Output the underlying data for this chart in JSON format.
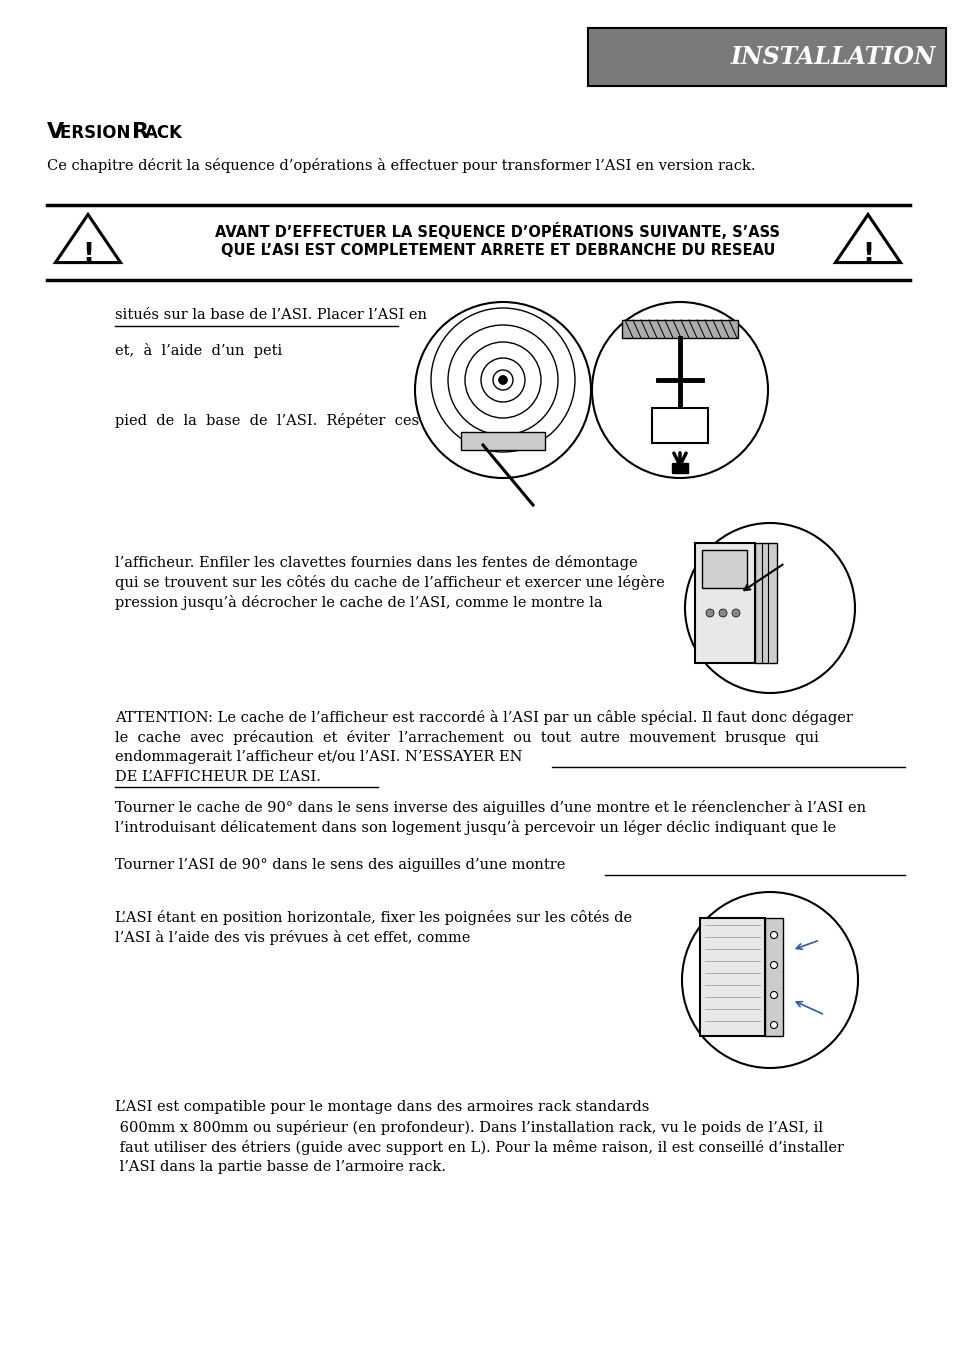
{
  "bg_color": "#ffffff",
  "header_bg": "#7a7a7a",
  "header_text": "INSTALLATION",
  "header_text_color": "#ffffff",
  "section_title_v": "V",
  "section_title_rest": "ERSION ",
  "section_title_r": "R",
  "section_title_ack": "ACK",
  "intro_text": "Ce chapitre décrit la séquence d’opérations à effectuer pour transformer l’ASI en version rack.",
  "warning_line1": "AVANT D’EFFECTUER LA SEQUENCE D’OPÉRATIONS SUIVANTE, S’ASS",
  "warning_line2": "QUE L’ASI EST COMPLETEMENT ARRETE ET DEBRANCHE DU RESEAU",
  "para1_line1": "situés sur la base de l’ASI. Placer l’ASI en",
  "para1_line2": "et,  à  l’aide  d’un  peti",
  "para1_line3": "pied  de  la  base  de  l’ASI.  Répéter  ces",
  "para2_line1": "l’afficheur. Enfiler les clavettes fournies dans les fentes de démontage",
  "para2_line2": "qui se trouvent sur les côtés du cache de l’afficheur et exercer une légère",
  "para2_line3": "pression jusqu’à décrocher le cache de l’ASI, comme le montre la",
  "attention_line1": "ATTENTION: Le cache de l’afficheur est raccordé à l’ASI par un câble spécial. Il faut donc dégager",
  "attention_line2": "le  cache  avec  précaution  et  éviter  l’arrachement  ou  tout  autre  mouvement  brusque  qui",
  "attention_line3": "endommagerait l’afficheur et/ou l’ASI. N’ESSAYER EN",
  "attention_line4": "DE L’AFFICHEUR DE L’ASI.",
  "tourner_line1": "Tourner le cache de 90° dans le sens inverse des aiguilles d’une montre et le réenclencher à l’ASI en",
  "tourner_line2": "l’introduisant délicatement dans son logement jusqu’à percevoir un léger déclic indiquant que le",
  "tourner2_line1": "Tourner l’ASI de 90° dans le sens des aiguilles d’une montre",
  "lasi_line1": "L’ASI étant en position horizontale, fixer les poignées sur les côtés de",
  "lasi_line2": "l’ASI à l’aide des vis prévues à cet effet, comme",
  "compat_line1": "L’ASI est compatible pour le montage dans des armoires rack standards",
  "compat_line2": " 600mm x 800mm ou supérieur (en profondeur). Dans l’installation rack, vu le poids de l’ASI, il",
  "compat_line3": " faut utiliser des étriers (guide avec support en L). Pour la même raison, il est conseillé d’installer",
  "compat_line4": " l’ASI dans la partie basse de l’armoire rack."
}
